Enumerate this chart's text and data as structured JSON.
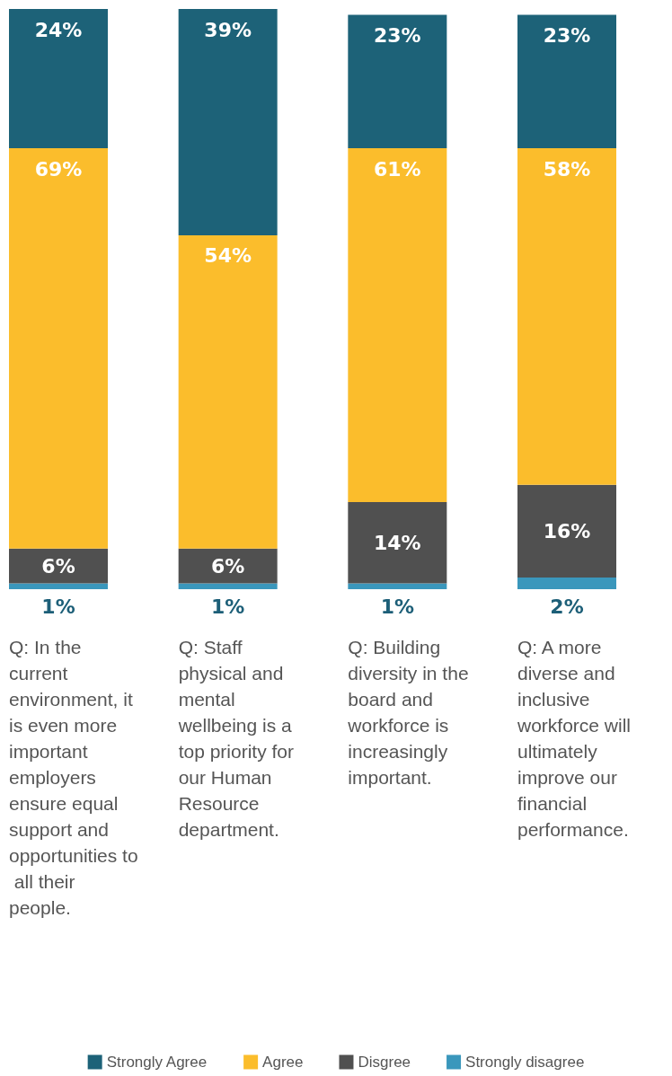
{
  "chart_data": {
    "type": "bar",
    "stacked": true,
    "legend": "bottom",
    "categories": [
      "Q: In the current environment, it is even more important employers ensure equal support and opportunities to all their people.",
      "Q: Staff physical and mental wellbeing is a top priority for our Human Resource department.",
      "Q: Building diversity in the board and workforce is increasingly important.",
      "Q: A more diverse and inclusive workforce will ultimately improve our financial performance."
    ],
    "series": [
      {
        "name": "Strongly disagree",
        "color": "#3a97bc",
        "values": [
          1,
          1,
          1,
          2
        ],
        "value_labels": [
          "1%",
          "1%",
          "1%",
          "2%"
        ]
      },
      {
        "name": "Disgree",
        "color": "#505050",
        "values": [
          6,
          6,
          14,
          16
        ],
        "value_labels": [
          "6%",
          "6%",
          "14%",
          "16%"
        ]
      },
      {
        "name": "Agree",
        "color": "#fbbd2c",
        "values": [
          69,
          54,
          61,
          58
        ],
        "value_labels": [
          "69%",
          "54%",
          "61%",
          "58%"
        ]
      },
      {
        "name": "Strongly Agree",
        "color": "#1d6278",
        "values": [
          24,
          39,
          23,
          23
        ],
        "value_labels": [
          "24%",
          "39%",
          "23%",
          "23%"
        ]
      }
    ]
  }
}
